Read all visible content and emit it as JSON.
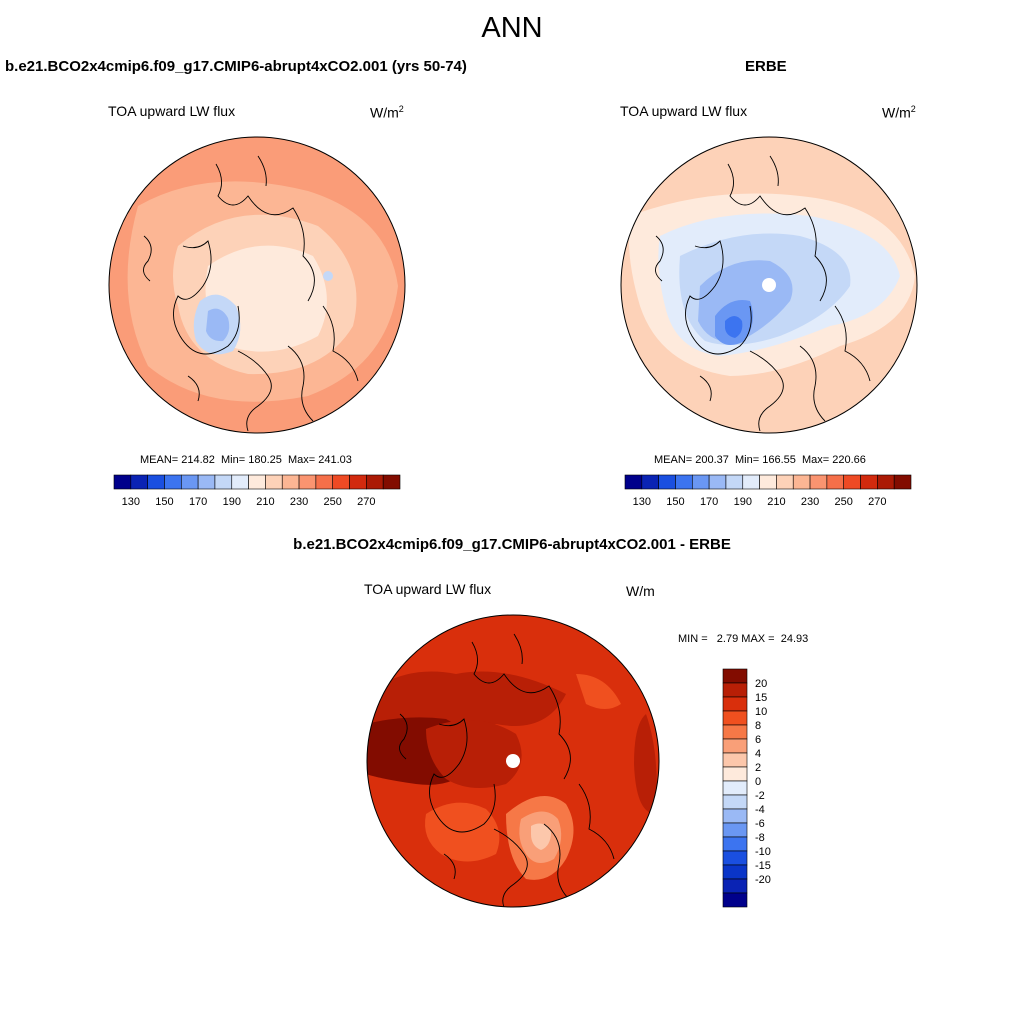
{
  "figure_title": "ANN",
  "panel_left": {
    "title": "b.e21.BCO2x4cmip6.f09_g17.CMIP6-abrupt4xCO2.001 (yrs 50-74)",
    "variable": "TOA upward LW flux",
    "units_base": "W/m",
    "units_exp": "2",
    "stats": "MEAN= 214.82  Min= 180.25  Max= 241.03"
  },
  "panel_right": {
    "title": "ERBE",
    "variable": "TOA upward LW flux",
    "units_base": "W/m",
    "units_exp": "2",
    "stats": "MEAN= 200.37  Min= 166.55  Max= 220.66"
  },
  "panel_diff": {
    "title": "b.e21.BCO2x4cmip6.f09_g17.CMIP6-abrupt4xCO2.001 - ERBE",
    "variable": "TOA upward LW flux",
    "units": "W/m",
    "minmax": "MIN =   2.79 MAX =  24.93"
  },
  "colorbar_main": {
    "colors": [
      "#00008b",
      "#0a23b4",
      "#1a4fe0",
      "#3c74f0",
      "#6a97f3",
      "#9ab9f5",
      "#c4d8f7",
      "#e2ecfb",
      "#feeadc",
      "#fdd2b8",
      "#fcb694",
      "#fa9470",
      "#f56f49",
      "#ee4a24",
      "#d22a0e",
      "#ab1a05",
      "#820c00"
    ],
    "labels": [
      "130",
      "150",
      "170",
      "190",
      "210",
      "230",
      "250",
      "270"
    ]
  },
  "colorbar_diff": {
    "colors": [
      "#820c00",
      "#b81f06",
      "#d92f0c",
      "#f0501f",
      "#f67847",
      "#f99f78",
      "#fcc7ab",
      "#feeadc",
      "#e2ecfb",
      "#c4d8f7",
      "#9ab9f5",
      "#6a97f3",
      "#3c74f0",
      "#1a4fe0",
      "#0a35c8",
      "#0a23b4",
      "#00008b"
    ],
    "labels": [
      "20",
      "15",
      "10",
      "8",
      "6",
      "4",
      "2",
      "0",
      "-2",
      "-4",
      "-6",
      "-8",
      "-10",
      "-15",
      "-20"
    ]
  }
}
